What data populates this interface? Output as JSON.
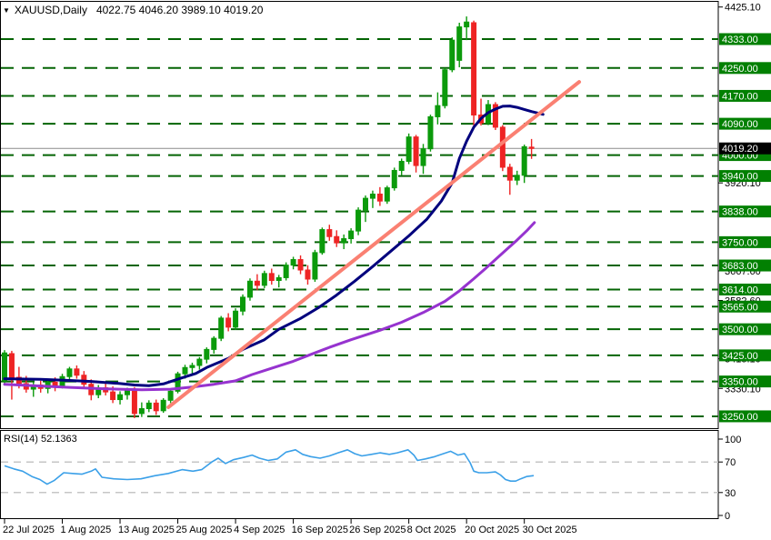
{
  "title": {
    "collapse_icon": "▼",
    "symbol": "XAUUSD,Daily",
    "ohlc": "4022.75 4046.20 3989.10 4019.20"
  },
  "colors": {
    "background": "#ffffff",
    "candle_up": "#0b9a0b",
    "candle_down": "#ee2424",
    "ma_fast": "#00007d",
    "ma_slow": "#9633cf",
    "trendline": "#fa8072",
    "level_line": "#046404",
    "level_badge": "#028002",
    "current_badge": "#000000",
    "current_line": "#8c8c8c",
    "rsi_line": "#3ba0e8",
    "rsi_dash": "#c6c6c6",
    "axis_text": "#000000",
    "badge_text": "#ffffff"
  },
  "chart_data": {
    "type": "candlestick",
    "symbol": "XAUUSD",
    "timeframe": "Daily",
    "x_axis": {
      "ticks": [
        {
          "index": 0,
          "label": "22 Jul 2025"
        },
        {
          "index": 8,
          "label": "1 Aug 2025"
        },
        {
          "index": 16,
          "label": "13 Aug 2025"
        },
        {
          "index": 24,
          "label": "25 Aug 2025"
        },
        {
          "index": 32,
          "label": "4 Sep 2025"
        },
        {
          "index": 40,
          "label": "16 Sep 2025"
        },
        {
          "index": 48,
          "label": "26 Sep 2025"
        },
        {
          "index": 56,
          "label": "8 Oct 2025"
        },
        {
          "index": 64,
          "label": "20 Oct 2025"
        },
        {
          "index": 72,
          "label": "30 Oct 2025"
        }
      ]
    },
    "y_axis": {
      "scale_labels": [
        {
          "price": 4425.1,
          "label": "4425.10"
        },
        {
          "price": 3920.1,
          "label": "3920.10"
        },
        {
          "price": 3667.6,
          "label": "3667.60"
        },
        {
          "price": 3582.6,
          "label": "3582.60"
        },
        {
          "price": 3415.1,
          "label": "3415.10"
        },
        {
          "price": 3330.1,
          "label": "3330.10"
        }
      ]
    },
    "price_levels": [
      {
        "price": 4333,
        "label": "4333.00"
      },
      {
        "price": 4250,
        "label": "4250.00"
      },
      {
        "price": 4170,
        "label": "4170.00"
      },
      {
        "price": 4090,
        "label": "4090.00"
      },
      {
        "price": 4000,
        "label": "4000.00"
      },
      {
        "price": 3940,
        "label": "3940.00"
      },
      {
        "price": 3838,
        "label": "3838.00"
      },
      {
        "price": 3750,
        "label": "3750.00"
      },
      {
        "price": 3683,
        "label": "3683.00"
      },
      {
        "price": 3614,
        "label": "3614.00"
      },
      {
        "price": 3565,
        "label": "3565.00"
      },
      {
        "price": 3500,
        "label": "3500.00"
      },
      {
        "price": 3425,
        "label": "3425.00"
      },
      {
        "price": 3350,
        "label": "3350.00"
      },
      {
        "price": 3250,
        "label": "3250.00"
      }
    ],
    "current_price": {
      "price": 4019.2,
      "label": "4019.20"
    },
    "candles": [
      [
        3352,
        3440,
        3344,
        3432
      ],
      [
        3430,
        3438,
        3298,
        3362
      ],
      [
        3362,
        3392,
        3330,
        3344
      ],
      [
        3344,
        3366,
        3318,
        3328
      ],
      [
        3328,
        3348,
        3306,
        3340
      ],
      [
        3340,
        3352,
        3318,
        3330
      ],
      [
        3330,
        3356,
        3316,
        3348
      ],
      [
        3348,
        3362,
        3322,
        3338
      ],
      [
        3338,
        3372,
        3330,
        3364
      ],
      [
        3364,
        3392,
        3352,
        3386
      ],
      [
        3386,
        3396,
        3358,
        3368
      ],
      [
        3368,
        3380,
        3332,
        3342
      ],
      [
        3342,
        3356,
        3296,
        3312
      ],
      [
        3312,
        3340,
        3302,
        3332
      ],
      [
        3332,
        3344,
        3310,
        3320
      ],
      [
        3320,
        3336,
        3288,
        3298
      ],
      [
        3298,
        3322,
        3284,
        3312
      ],
      [
        3312,
        3332,
        3298,
        3326
      ],
      [
        3326,
        3334,
        3245,
        3258
      ],
      [
        3258,
        3290,
        3248,
        3272
      ],
      [
        3272,
        3296,
        3262,
        3288
      ],
      [
        3288,
        3298,
        3254,
        3266
      ],
      [
        3266,
        3302,
        3260,
        3296
      ],
      [
        3296,
        3330,
        3288,
        3322
      ],
      [
        3322,
        3378,
        3316,
        3372
      ],
      [
        3372,
        3398,
        3358,
        3390
      ],
      [
        3390,
        3404,
        3368,
        3396
      ],
      [
        3396,
        3420,
        3384,
        3414
      ],
      [
        3414,
        3448,
        3402,
        3442
      ],
      [
        3442,
        3480,
        3430,
        3474
      ],
      [
        3474,
        3538,
        3466,
        3532
      ],
      [
        3532,
        3546,
        3494,
        3506
      ],
      [
        3506,
        3560,
        3498,
        3552
      ],
      [
        3552,
        3600,
        3540,
        3592
      ],
      [
        3592,
        3646,
        3582,
        3638
      ],
      [
        3638,
        3658,
        3612,
        3626
      ],
      [
        3626,
        3668,
        3618,
        3660
      ],
      [
        3660,
        3674,
        3628,
        3640
      ],
      [
        3640,
        3656,
        3620,
        3648
      ],
      [
        3648,
        3692,
        3640,
        3684
      ],
      [
        3684,
        3708,
        3672,
        3700
      ],
      [
        3700,
        3712,
        3658,
        3670
      ],
      [
        3670,
        3684,
        3628,
        3644
      ],
      [
        3644,
        3728,
        3636,
        3720
      ],
      [
        3720,
        3792,
        3714,
        3786
      ],
      [
        3786,
        3800,
        3754,
        3766
      ],
      [
        3766,
        3784,
        3736,
        3748
      ],
      [
        3748,
        3772,
        3730,
        3760
      ],
      [
        3760,
        3790,
        3746,
        3782
      ],
      [
        3782,
        3850,
        3770,
        3842
      ],
      [
        3842,
        3884,
        3808,
        3876
      ],
      [
        3876,
        3898,
        3848,
        3888
      ],
      [
        3888,
        3908,
        3854,
        3868
      ],
      [
        3868,
        3912,
        3860,
        3906
      ],
      [
        3906,
        3964,
        3898,
        3956
      ],
      [
        3956,
        3990,
        3942,
        3982
      ],
      [
        3982,
        4062,
        3974,
        4052
      ],
      [
        4052,
        4058,
        3950,
        3970
      ],
      [
        3970,
        4032,
        3946,
        4018
      ],
      [
        4018,
        4116,
        4010,
        4110
      ],
      [
        4110,
        4180,
        4088,
        4142
      ],
      [
        4142,
        4250,
        4134,
        4245
      ],
      [
        4245,
        4338,
        4238,
        4330
      ],
      [
        4272,
        4380,
        4252,
        4368
      ],
      [
        4368,
        4398,
        4330,
        4382
      ],
      [
        4380,
        4386,
        4080,
        4115
      ],
      [
        4115,
        4162,
        4085,
        4092
      ],
      [
        4092,
        4158,
        4086,
        4145
      ],
      [
        4145,
        4152,
        4072,
        4080
      ],
      [
        4080,
        4086,
        3954,
        3965
      ],
      [
        3965,
        3975,
        3886,
        3928
      ],
      [
        3928,
        3955,
        3914,
        3942
      ],
      [
        3942,
        4030,
        3920,
        4024
      ],
      [
        4022.75,
        4046.2,
        3989.1,
        4019.2
      ]
    ],
    "ma_fast": [
      [
        0,
        3358
      ],
      [
        5,
        3356
      ],
      [
        9,
        3353
      ],
      [
        12,
        3350
      ],
      [
        16,
        3344
      ],
      [
        18,
        3340
      ],
      [
        20,
        3338
      ],
      [
        22,
        3343
      ],
      [
        24.5,
        3360
      ],
      [
        26.5,
        3373
      ],
      [
        28,
        3390
      ],
      [
        31,
        3416
      ],
      [
        33,
        3442
      ],
      [
        36,
        3470
      ],
      [
        38,
        3500
      ],
      [
        41,
        3531
      ],
      [
        43.5,
        3562
      ],
      [
        46,
        3598
      ],
      [
        48.5,
        3638
      ],
      [
        51,
        3680
      ],
      [
        53.5,
        3724
      ],
      [
        56,
        3768
      ],
      [
        58.5,
        3816
      ],
      [
        60.5,
        3868
      ],
      [
        62,
        3920
      ],
      [
        63,
        3990
      ],
      [
        64,
        4040
      ],
      [
        65,
        4080
      ],
      [
        66,
        4105
      ],
      [
        67,
        4122
      ],
      [
        68,
        4132
      ],
      [
        69,
        4140
      ],
      [
        70,
        4141
      ],
      [
        71,
        4137
      ],
      [
        72,
        4131
      ],
      [
        73,
        4125
      ],
      [
        74.6,
        4117
      ]
    ],
    "ma_slow": [
      [
        0,
        3342
      ],
      [
        4,
        3338
      ],
      [
        9,
        3333
      ],
      [
        14,
        3329
      ],
      [
        19,
        3326
      ],
      [
        23,
        3328
      ],
      [
        26,
        3334
      ],
      [
        29,
        3342
      ],
      [
        32,
        3352
      ],
      [
        34.3,
        3370
      ],
      [
        37,
        3388
      ],
      [
        40,
        3408
      ],
      [
        42.5,
        3428
      ],
      [
        45,
        3448
      ],
      [
        48,
        3470
      ],
      [
        52,
        3497
      ],
      [
        55,
        3520
      ],
      [
        58,
        3548
      ],
      [
        61,
        3580
      ],
      [
        63,
        3610
      ],
      [
        65,
        3645
      ],
      [
        66.5,
        3672
      ],
      [
        68,
        3700
      ],
      [
        69.5,
        3728
      ],
      [
        71,
        3756
      ],
      [
        72.3,
        3782
      ],
      [
        73.4,
        3806
      ]
    ],
    "trendline": {
      "i1": 22.7,
      "p1": 3276,
      "i2": 79.6,
      "p2": 4210
    },
    "rsi": {
      "label": "RSI(14) 52.1363",
      "period": 14,
      "value": 52.1363,
      "level_lines": [
        70,
        30
      ],
      "scale_labels": [
        {
          "value": 100,
          "label": "100"
        },
        {
          "value": 70,
          "label": "70"
        },
        {
          "value": 30,
          "label": "30"
        },
        {
          "value": 0,
          "label": "0"
        }
      ],
      "points": [
        [
          0,
          65
        ],
        [
          1.3,
          61
        ],
        [
          2.5,
          58
        ],
        [
          3.8,
          51
        ],
        [
          4.9,
          47
        ],
        [
          5.9,
          41
        ],
        [
          6.9,
          46
        ],
        [
          8.2,
          56
        ],
        [
          9.4,
          55
        ],
        [
          10.7,
          54
        ],
        [
          12,
          58
        ],
        [
          12.6,
          61
        ],
        [
          13.5,
          50
        ],
        [
          15.1,
          48
        ],
        [
          17,
          47
        ],
        [
          18.9,
          48
        ],
        [
          20.8,
          52
        ],
        [
          22.7,
          55
        ],
        [
          24.6,
          60
        ],
        [
          26.1,
          58
        ],
        [
          27.3,
          60
        ],
        [
          28.7,
          70
        ],
        [
          29.6,
          75
        ],
        [
          30.6,
          68
        ],
        [
          31.7,
          73
        ],
        [
          33.1,
          76
        ],
        [
          34.3,
          79
        ],
        [
          35.3,
          75
        ],
        [
          36.5,
          72
        ],
        [
          37.8,
          74
        ],
        [
          39,
          83
        ],
        [
          40.3,
          86
        ],
        [
          41.3,
          80
        ],
        [
          42.4,
          77
        ],
        [
          43.7,
          75
        ],
        [
          45,
          78
        ],
        [
          46.2,
          82
        ],
        [
          47.5,
          86
        ],
        [
          48.5,
          81
        ],
        [
          49.5,
          78
        ],
        [
          50.8,
          80
        ],
        [
          52,
          82
        ],
        [
          53.3,
          80
        ],
        [
          54.4,
          82
        ],
        [
          55.9,
          86
        ],
        [
          56.7,
          79
        ],
        [
          57.2,
          72
        ],
        [
          58.3,
          74
        ],
        [
          59.6,
          77
        ],
        [
          60.8,
          81
        ],
        [
          61.8,
          84
        ],
        [
          62.8,
          79
        ],
        [
          63.7,
          81
        ],
        [
          64.5,
          69
        ],
        [
          65,
          58
        ],
        [
          65.7,
          56
        ],
        [
          66.8,
          56
        ],
        [
          68,
          57
        ],
        [
          68.7,
          53
        ],
        [
          69.4,
          47
        ],
        [
          70.1,
          45
        ],
        [
          70.8,
          45
        ],
        [
          71.5,
          48
        ],
        [
          72.3,
          51
        ],
        [
          73.3,
          52.14
        ]
      ]
    }
  }
}
